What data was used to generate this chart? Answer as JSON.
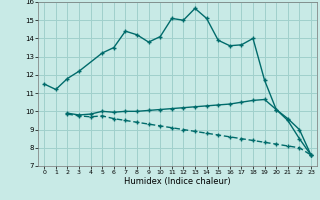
{
  "xlabel": "Humidex (Indice chaleur)",
  "xlim": [
    -0.5,
    23.5
  ],
  "ylim": [
    7,
    16
  ],
  "xticks": [
    0,
    1,
    2,
    3,
    4,
    5,
    6,
    7,
    8,
    9,
    10,
    11,
    12,
    13,
    14,
    15,
    16,
    17,
    18,
    19,
    20,
    21,
    22,
    23
  ],
  "yticks": [
    7,
    8,
    9,
    10,
    11,
    12,
    13,
    14,
    15,
    16
  ],
  "bg_color": "#c8eae6",
  "grid_color": "#a0d0cc",
  "line_color": "#006b6b",
  "curve1_x": [
    0,
    1,
    2,
    3,
    5,
    6,
    7,
    8,
    9,
    10,
    11,
    12,
    13,
    14,
    15,
    16,
    17,
    18,
    19,
    20,
    21,
    22,
    23
  ],
  "curve1_y": [
    11.5,
    11.2,
    11.8,
    12.2,
    13.2,
    13.5,
    14.4,
    14.2,
    13.8,
    14.1,
    15.1,
    15.0,
    15.65,
    15.1,
    13.9,
    13.6,
    13.65,
    14.0,
    11.7,
    10.1,
    9.6,
    9.0,
    7.6
  ],
  "curve2_x": [
    2,
    3,
    4,
    5,
    6,
    7,
    8,
    9,
    10,
    11,
    12,
    13,
    14,
    15,
    16,
    17,
    18,
    19,
    20,
    21,
    22,
    23
  ],
  "curve2_y": [
    9.9,
    9.8,
    9.85,
    10.0,
    9.95,
    10.0,
    10.0,
    10.05,
    10.1,
    10.15,
    10.2,
    10.25,
    10.3,
    10.35,
    10.4,
    10.5,
    10.6,
    10.65,
    10.1,
    9.5,
    8.5,
    7.6
  ],
  "curve3_x": [
    2,
    3,
    4,
    5,
    6,
    7,
    8,
    9,
    10,
    11,
    12,
    13,
    14,
    15,
    16,
    17,
    18,
    19,
    20,
    21,
    22,
    23
  ],
  "curve3_y": [
    9.85,
    9.75,
    9.7,
    9.75,
    9.6,
    9.5,
    9.4,
    9.3,
    9.2,
    9.1,
    9.0,
    8.9,
    8.8,
    8.7,
    8.6,
    8.5,
    8.4,
    8.3,
    8.2,
    8.1,
    8.0,
    7.6
  ]
}
